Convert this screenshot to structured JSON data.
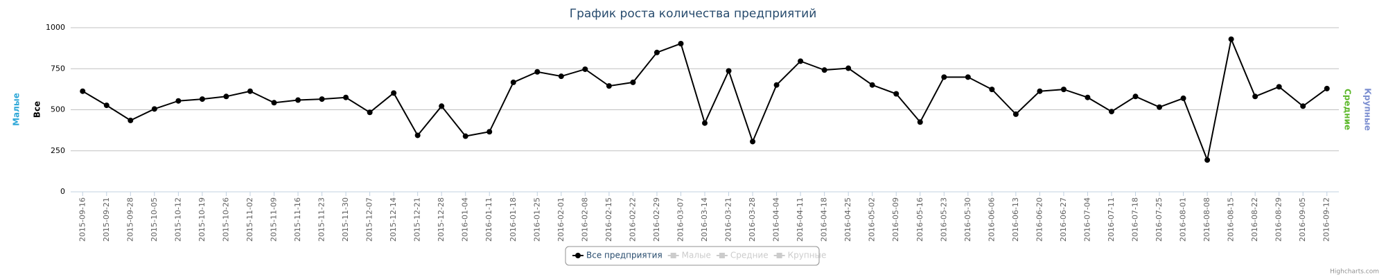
{
  "chart_data": {
    "type": "line",
    "title": "График роста количества предприятий",
    "categories": [
      "2015-09-16",
      "2015-09-21",
      "2015-09-28",
      "2015-10-05",
      "2015-10-12",
      "2015-10-19",
      "2015-10-26",
      "2015-11-02",
      "2015-11-09",
      "2015-11-16",
      "2015-11-23",
      "2015-11-30",
      "2015-12-07",
      "2015-12-14",
      "2015-12-21",
      "2015-12-28",
      "2016-01-04",
      "2016-01-11",
      "2016-01-18",
      "2016-01-25",
      "2016-02-01",
      "2016-02-08",
      "2016-02-15",
      "2016-02-22",
      "2016-02-29",
      "2016-03-07",
      "2016-03-14",
      "2016-03-21",
      "2016-03-28",
      "2016-04-04",
      "2016-04-11",
      "2016-04-18",
      "2016-04-25",
      "2016-05-02",
      "2016-05-09",
      "2016-05-16",
      "2016-05-23",
      "2016-05-30",
      "2016-06-06",
      "2016-06-13",
      "2016-06-20",
      "2016-06-27",
      "2016-07-04",
      "2016-07-11",
      "2016-07-18",
      "2016-07-25",
      "2016-08-01",
      "2016-08-08",
      "2016-08-15",
      "2016-08-22",
      "2016-08-29",
      "2016-09-05",
      "2016-09-12"
    ],
    "series": [
      {
        "name": "Все предприятия",
        "color": "#000000",
        "values": [
          613,
          527,
          435,
          505,
          554,
          565,
          581,
          613,
          543,
          559,
          565,
          575,
          484,
          602,
          344,
          522,
          339,
          366,
          667,
          731,
          704,
          747,
          645,
          667,
          849,
          903,
          419,
          737,
          306,
          651,
          796,
          742,
          753,
          651,
          597,
          425,
          699,
          699,
          624,
          473,
          613,
          624,
          575,
          489,
          581,
          516,
          570,
          194,
          930,
          581,
          640,
          522,
          629
        ]
      }
    ],
    "hidden_legend_items": [
      {
        "name": "Малые"
      },
      {
        "name": "Средние"
      },
      {
        "name": "Крупные"
      }
    ],
    "left_axis_titles": [
      {
        "text": "Малые",
        "color": "#2fa8d8"
      },
      {
        "text": "Все",
        "color": "#000000"
      }
    ],
    "right_axis_titles": [
      {
        "text": "Средние",
        "color": "#5cb82a"
      },
      {
        "text": "Крупные",
        "color": "#7b8ed0"
      }
    ],
    "ylim": [
      0,
      1000
    ],
    "yticks": [
      0,
      250,
      500,
      750,
      1000
    ],
    "grid": true,
    "credits": "Highcharts.com"
  }
}
